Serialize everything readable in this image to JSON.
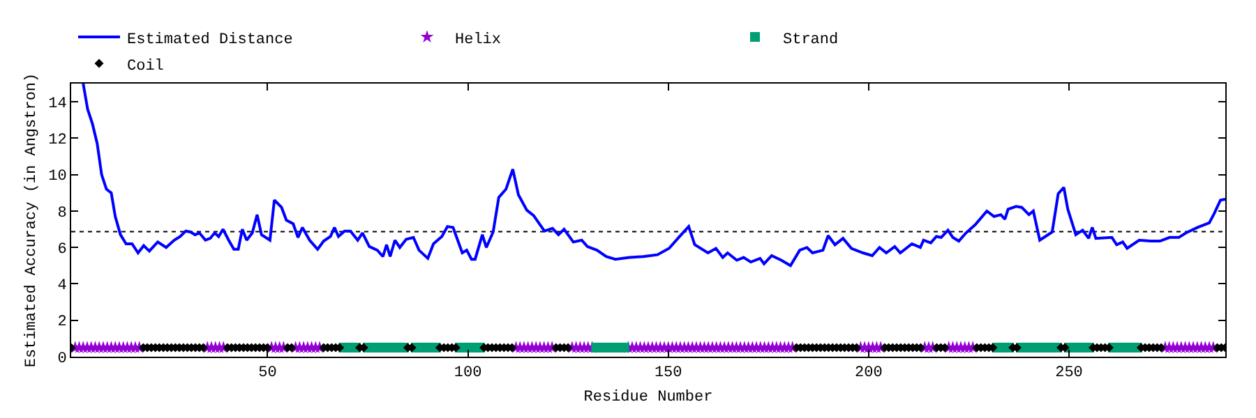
{
  "chart_data": {
    "type": "line",
    "xlabel": "Residue Number",
    "ylabel": "Estimated Accuracy (in Angstron)",
    "xlim": [
      1,
      289
    ],
    "ylim": [
      0,
      15
    ],
    "xticks": [
      50,
      100,
      150,
      200,
      250
    ],
    "yticks": [
      0,
      2,
      4,
      6,
      8,
      10,
      12,
      14
    ],
    "grid": false,
    "legend": "top",
    "ref_lines": [
      {
        "axis": "y",
        "value": 6.87,
        "color": "#000000",
        "line_style": "dotted"
      }
    ],
    "series": [
      {
        "name": "Estimated Distance",
        "color": "#0000ff",
        "marker": "none",
        "line_style": "solid",
        "x": [
          4,
          5.1,
          6.3,
          7.5,
          8.6,
          9.8,
          11,
          12,
          13.3,
          14.7,
          16.2,
          17.7,
          19.1,
          20.5,
          22.6,
          24.7,
          26.7,
          28.2,
          29.6,
          30.8,
          31.9,
          33,
          34.5,
          35.7,
          36.8,
          37.8,
          38.9,
          40.3,
          41.6,
          42.7,
          43.7,
          44.8,
          46.2,
          47.4,
          48.5,
          50.6,
          51.7,
          53.5,
          54.7,
          56.4,
          57.6,
          58.7,
          60.5,
          62.5,
          64,
          65.7,
          66.7,
          67.7,
          69.2,
          70.7,
          72.5,
          73.7,
          75.4,
          77.4,
          78.8,
          79.7,
          80.6,
          81.8,
          83,
          84.6,
          86.4,
          87.8,
          90,
          91.4,
          93.5,
          94.9,
          96.3,
          98.6,
          99.7,
          100.9,
          101.8,
          103.6,
          104.6,
          106.3,
          107.7,
          109.5,
          111.2,
          112.6,
          114.7,
          116.4,
          119.1,
          121.1,
          122.6,
          124,
          126.3,
          128.4,
          129.8,
          132.2,
          134.5,
          136.8,
          140.3,
          143.8,
          147.3,
          150.2,
          152.6,
          155.1,
          156.6,
          159.9,
          161.9,
          163.6,
          164.8,
          167.1,
          168.8,
          170.6,
          172.9,
          173.9,
          175.8,
          178.2,
          180.5,
          182.8,
          184.6,
          186,
          188.6,
          189.9,
          191.6,
          193.6,
          195.7,
          198.6,
          200.9,
          202.7,
          204.4,
          206.5,
          207.9,
          210.8,
          212.9,
          213.7,
          215.5,
          216.9,
          218.1,
          219.8,
          221,
          222.5,
          224.3,
          226.6,
          229.5,
          231.3,
          233,
          234,
          234.8,
          236.8,
          238.2,
          240,
          241.1,
          242.7,
          244.1,
          245.8,
          247.3,
          248.7,
          249.7,
          251.7,
          253.4,
          254.9,
          255.8,
          256.7,
          260.7,
          261.9,
          263.4,
          264.5,
          267.5,
          270.4,
          272.7,
          275.1,
          277.4,
          279.2,
          282.1,
          285,
          286.2,
          287.8,
          289
        ],
        "values": [
          15,
          13.6,
          12.8,
          11.7,
          10,
          9.2,
          9,
          7.7,
          6.7,
          6.2,
          6.2,
          5.7,
          6.1,
          5.8,
          6.3,
          6,
          6.4,
          6.6,
          6.9,
          6.85,
          6.7,
          6.8,
          6.4,
          6.5,
          6.8,
          6.6,
          7,
          6.4,
          5.9,
          5.9,
          7,
          6.4,
          6.8,
          7.8,
          6.7,
          6.4,
          8.6,
          8.2,
          7.5,
          7.3,
          6.55,
          7.1,
          6.4,
          5.9,
          6.35,
          6.6,
          7.1,
          6.6,
          6.9,
          6.9,
          6.4,
          6.8,
          6.05,
          5.85,
          5.5,
          6.15,
          5.5,
          6.4,
          6,
          6.45,
          6.55,
          5.85,
          5.4,
          6.2,
          6.6,
          7.15,
          7.1,
          5.7,
          5.85,
          5.35,
          5.35,
          6.7,
          6,
          6.85,
          8.75,
          9.2,
          10.3,
          8.9,
          8.05,
          7.75,
          6.9,
          7.05,
          6.7,
          7,
          6.3,
          6.4,
          6.05,
          5.85,
          5.5,
          5.35,
          5.45,
          5.5,
          5.6,
          5.95,
          6.55,
          7.15,
          6.15,
          5.7,
          5.95,
          5.45,
          5.7,
          5.3,
          5.45,
          5.2,
          5.4,
          5.1,
          5.55,
          5.3,
          5,
          5.85,
          6,
          5.7,
          5.85,
          6.65,
          6.15,
          6.5,
          5.95,
          5.7,
          5.55,
          6,
          5.7,
          6.05,
          5.7,
          6.2,
          6,
          6.4,
          6.25,
          6.6,
          6.55,
          6.95,
          6.55,
          6.35,
          6.8,
          7.25,
          8,
          7.7,
          7.8,
          7.55,
          8.1,
          8.25,
          8.2,
          7.8,
          8,
          6.4,
          6.6,
          6.85,
          8.95,
          9.3,
          8.1,
          6.7,
          6.95,
          6.5,
          7.1,
          6.5,
          6.55,
          6.15,
          6.3,
          5.95,
          6.4,
          6.35,
          6.35,
          6.55,
          6.55,
          6.8,
          7.1,
          7.35,
          7.85,
          8.6,
          8.65
        ]
      },
      {
        "name": "Helix",
        "type": "scatter",
        "color": "#9400d3",
        "marker": "star",
        "x": [
          2,
          3,
          4,
          5,
          6,
          7,
          8,
          9,
          10,
          11,
          12,
          13,
          14,
          15,
          16,
          17,
          18,
          35,
          36,
          37,
          38,
          39,
          51,
          52,
          53,
          54,
          57,
          58,
          59,
          60,
          61,
          62,
          63,
          112,
          113,
          114,
          115,
          116,
          117,
          118,
          119,
          120,
          121,
          126,
          127,
          128,
          129,
          130,
          131,
          140,
          141,
          142,
          143,
          144,
          145,
          146,
          147,
          148,
          149,
          150,
          151,
          152,
          153,
          154,
          155,
          156,
          157,
          158,
          159,
          160,
          161,
          162,
          163,
          164,
          165,
          166,
          167,
          168,
          169,
          170,
          171,
          172,
          173,
          174,
          175,
          176,
          177,
          178,
          179,
          180,
          181,
          198,
          199,
          200,
          201,
          202,
          203,
          214,
          215,
          216,
          220,
          221,
          222,
          223,
          224,
          225,
          226,
          274,
          275,
          276,
          277,
          278,
          279,
          280,
          281,
          282,
          283,
          284,
          285,
          286
        ],
        "values": [
          0.5,
          0.5,
          0.5,
          0.5,
          0.5,
          0.5,
          0.5,
          0.5,
          0.5,
          0.5,
          0.5,
          0.5,
          0.5,
          0.5,
          0.5,
          0.5,
          0.5,
          0.5,
          0.5,
          0.5,
          0.5,
          0.5,
          0.5,
          0.5,
          0.5,
          0.5,
          0.5,
          0.5,
          0.5,
          0.5,
          0.5,
          0.5,
          0.5,
          0.5,
          0.5,
          0.5,
          0.5,
          0.5,
          0.5,
          0.5,
          0.5,
          0.5,
          0.5,
          0.5,
          0.5,
          0.5,
          0.5,
          0.5,
          0.5,
          0.5,
          0.5,
          0.5,
          0.5,
          0.5,
          0.5,
          0.5,
          0.5,
          0.5,
          0.5,
          0.5,
          0.5,
          0.5,
          0.5,
          0.5,
          0.5,
          0.5,
          0.5,
          0.5,
          0.5,
          0.5,
          0.5,
          0.5,
          0.5,
          0.5,
          0.5,
          0.5,
          0.5,
          0.5,
          0.5,
          0.5,
          0.5,
          0.5,
          0.5,
          0.5,
          0.5,
          0.5,
          0.5,
          0.5,
          0.5,
          0.5,
          0.5,
          0.5,
          0.5,
          0.5,
          0.5,
          0.5,
          0.5,
          0.5,
          0.5,
          0.5,
          0.5,
          0.5,
          0.5,
          0.5,
          0.5,
          0.5,
          0.5,
          0.5,
          0.5,
          0.5,
          0.5,
          0.5,
          0.5,
          0.5,
          0.5,
          0.5,
          0.5,
          0.5,
          0.5,
          0.5
        ]
      },
      {
        "name": "Strand",
        "type": "scatter",
        "color": "#009e73",
        "marker": "square",
        "x": [
          69,
          70,
          71,
          72,
          75,
          76,
          77,
          78,
          79,
          80,
          81,
          82,
          83,
          84,
          87,
          88,
          89,
          90,
          91,
          92,
          98,
          99,
          100,
          101,
          102,
          103,
          132,
          133,
          134,
          135,
          136,
          137,
          138,
          139,
          232,
          233,
          234,
          235,
          238,
          239,
          240,
          241,
          242,
          243,
          244,
          245,
          246,
          247,
          250,
          251,
          252,
          253,
          254,
          255,
          261,
          262,
          263,
          264,
          265,
          266,
          267
        ],
        "values": [
          0.5,
          0.5,
          0.5,
          0.5,
          0.5,
          0.5,
          0.5,
          0.5,
          0.5,
          0.5,
          0.5,
          0.5,
          0.5,
          0.5,
          0.5,
          0.5,
          0.5,
          0.5,
          0.5,
          0.5,
          0.5,
          0.5,
          0.5,
          0.5,
          0.5,
          0.5,
          0.5,
          0.5,
          0.5,
          0.5,
          0.5,
          0.5,
          0.5,
          0.5,
          0.5,
          0.5,
          0.5,
          0.5,
          0.5,
          0.5,
          0.5,
          0.5,
          0.5,
          0.5,
          0.5,
          0.5,
          0.5,
          0.5,
          0.5,
          0.5,
          0.5,
          0.5,
          0.5,
          0.5,
          0.5,
          0.5,
          0.5,
          0.5,
          0.5,
          0.5,
          0.5
        ]
      },
      {
        "name": "Coil",
        "type": "scatter",
        "color": "#000000",
        "marker": "diamond",
        "x": [
          1,
          19,
          20,
          21,
          22,
          23,
          24,
          25,
          26,
          27,
          28,
          29,
          30,
          31,
          32,
          33,
          34,
          40,
          41,
          42,
          43,
          44,
          45,
          46,
          47,
          48,
          49,
          50,
          55,
          56,
          64,
          65,
          66,
          67,
          68,
          73,
          74,
          85,
          86,
          93,
          94,
          95,
          96,
          97,
          104,
          105,
          106,
          107,
          108,
          109,
          110,
          111,
          122,
          123,
          124,
          125,
          182,
          183,
          184,
          185,
          186,
          187,
          188,
          189,
          190,
          191,
          192,
          193,
          194,
          195,
          196,
          197,
          204,
          205,
          206,
          207,
          208,
          209,
          210,
          211,
          212,
          213,
          217,
          218,
          219,
          227,
          228,
          229,
          230,
          231,
          236,
          237,
          248,
          249,
          256,
          257,
          258,
          259,
          260,
          268,
          269,
          270,
          271,
          272,
          273,
          287,
          288,
          289
        ],
        "values": [
          0.5,
          0.5,
          0.5,
          0.5,
          0.5,
          0.5,
          0.5,
          0.5,
          0.5,
          0.5,
          0.5,
          0.5,
          0.5,
          0.5,
          0.5,
          0.5,
          0.5,
          0.5,
          0.5,
          0.5,
          0.5,
          0.5,
          0.5,
          0.5,
          0.5,
          0.5,
          0.5,
          0.5,
          0.5,
          0.5,
          0.5,
          0.5,
          0.5,
          0.5,
          0.5,
          0.5,
          0.5,
          0.5,
          0.5,
          0.5,
          0.5,
          0.5,
          0.5,
          0.5,
          0.5,
          0.5,
          0.5,
          0.5,
          0.5,
          0.5,
          0.5,
          0.5,
          0.5,
          0.5,
          0.5,
          0.5,
          0.5,
          0.5,
          0.5,
          0.5,
          0.5,
          0.5,
          0.5,
          0.5,
          0.5,
          0.5,
          0.5,
          0.5,
          0.5,
          0.5,
          0.5,
          0.5,
          0.5,
          0.5,
          0.5,
          0.5,
          0.5,
          0.5,
          0.5,
          0.5,
          0.5,
          0.5,
          0.5,
          0.5,
          0.5,
          0.5,
          0.5,
          0.5,
          0.5,
          0.5,
          0.5,
          0.5,
          0.5,
          0.5,
          0.5,
          0.5,
          0.5,
          0.5,
          0.5,
          0.5,
          0.5,
          0.5,
          0.5,
          0.5,
          0.5,
          0.5,
          0.5,
          0.5
        ]
      }
    ]
  }
}
